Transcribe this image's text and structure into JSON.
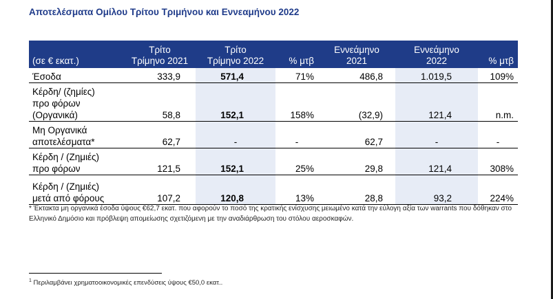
{
  "title": "Αποτελέσματα Ομίλου Τρίτου Τριμήνου και Εννεαμήνου 2022",
  "table": {
    "headers": [
      [
        "(σε € εκατ.)"
      ],
      [
        "Τρίτο",
        "Τρίμηνο 2021"
      ],
      [
        "Τρίτο",
        "Τρίμηνο 2022"
      ],
      [
        "% μτβ"
      ],
      [
        "Εννεάμηνο",
        "2021"
      ],
      [
        "Εννεάμηνο",
        "2022"
      ],
      [
        "% μτβ"
      ]
    ],
    "rows": [
      {
        "label": [
          "Έσοδα"
        ],
        "values": [
          "333,9",
          "571,4",
          "71%",
          "486,8",
          "1.019,5",
          "109%"
        ]
      },
      {
        "label": [
          "Κέρδη/ (ζημίες)",
          "προ φόρων",
          "(Οργανικά)"
        ],
        "values": [
          "58,8",
          "152,1",
          "158%",
          "(32,9)",
          "121,4",
          "n.m."
        ]
      },
      {
        "label": [
          "Μη Οργανικά",
          "αποτελέσματα*"
        ],
        "values": [
          "62,7",
          "-",
          "-",
          "62,7",
          "-",
          "-"
        ]
      },
      {
        "label": [
          "Κέρδη / (Ζημιές)",
          "προ φόρων"
        ],
        "values": [
          "121,5",
          "152,1",
          "25%",
          "29,8",
          "121,4",
          "308%"
        ]
      },
      {
        "label": [
          "Κέρδη / (Ζημιές)",
          "μετά από φόρους"
        ],
        "values": [
          "107,2",
          "120,8",
          "13%",
          "28,8",
          "93,2",
          "224%"
        ]
      }
    ]
  },
  "note": "* Έκτακτα μη οργανικά έσοδα ύψους €62,7 εκατ. που αφορούν το ποσό της κρατικής ενίσχυσης μειωμένο κατά την εύλογη αξία των warrants που δόθηκαν στο Ελληνικό Δημόσιο και πρόβλεψη απομείωσης σχετιζόμενη με την αναδιάρθρωση του στόλου αεροσκαφών.",
  "footnote": {
    "marker": "1",
    "text": "Περιλαμβάνει χρηματοοικονομικές επενδύσεις ύψους €50,0 εκατ.."
  },
  "colors": {
    "header_bg": "#1f3c88",
    "title": "#1f3b8a",
    "highlight": "#e7ecf6"
  }
}
